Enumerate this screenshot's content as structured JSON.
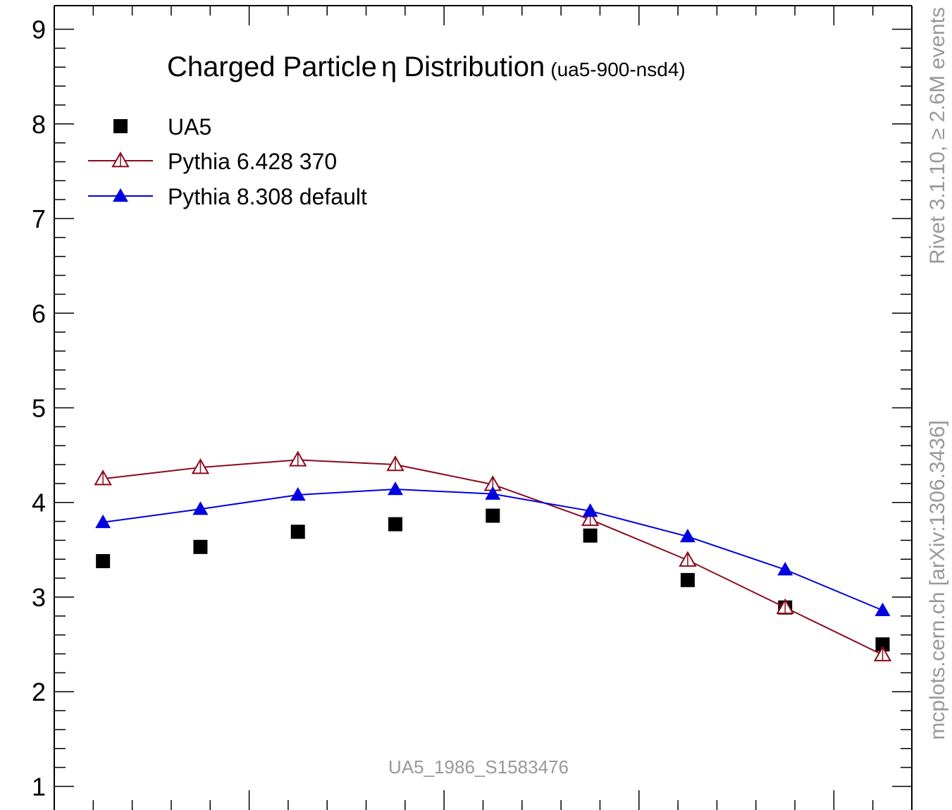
{
  "chart_data": {
    "type": "scatter",
    "title": "Charged Particle",
    "title_symbol": "η",
    "title_rest": "Distribution",
    "subtitle": "(ua5-900-nsd4)",
    "watermark": "UA5_1986_S1583476",
    "side_text_top": "Rivet 3.1.10, ≥ 2.6M events",
    "side_text_bottom": "mcplots.cern.ch [arXiv:1306.3436]",
    "xlabel": "",
    "ylabel": "",
    "ylim": [
      0.75,
      9.25
    ],
    "y_ticks": [
      1,
      2,
      3,
      4,
      5,
      6,
      7,
      8,
      9
    ],
    "x": [
      0.25,
      0.75,
      1.25,
      1.75,
      2.25,
      2.75,
      3.25,
      3.75,
      4.25
    ],
    "xlim": [
      0.0,
      4.4
    ],
    "legend_position": "top-left",
    "grid": false,
    "series": [
      {
        "name": "UA5",
        "marker": "square",
        "color": "#000000",
        "line": false,
        "values": [
          3.38,
          3.53,
          3.69,
          3.77,
          3.86,
          3.65,
          3.18,
          2.89,
          2.5
        ]
      },
      {
        "name": "Pythia 6.428 370",
        "marker": "open-triangle",
        "color": "#8b0a1e",
        "line": true,
        "values": [
          4.25,
          4.37,
          4.45,
          4.4,
          4.19,
          3.82,
          3.39,
          2.89,
          2.39
        ]
      },
      {
        "name": "Pythia 8.308 default",
        "marker": "filled-triangle",
        "color": "#0000e0",
        "line": true,
        "values": [
          3.79,
          3.93,
          4.08,
          4.14,
          4.09,
          3.91,
          3.64,
          3.29,
          2.86
        ]
      }
    ]
  }
}
